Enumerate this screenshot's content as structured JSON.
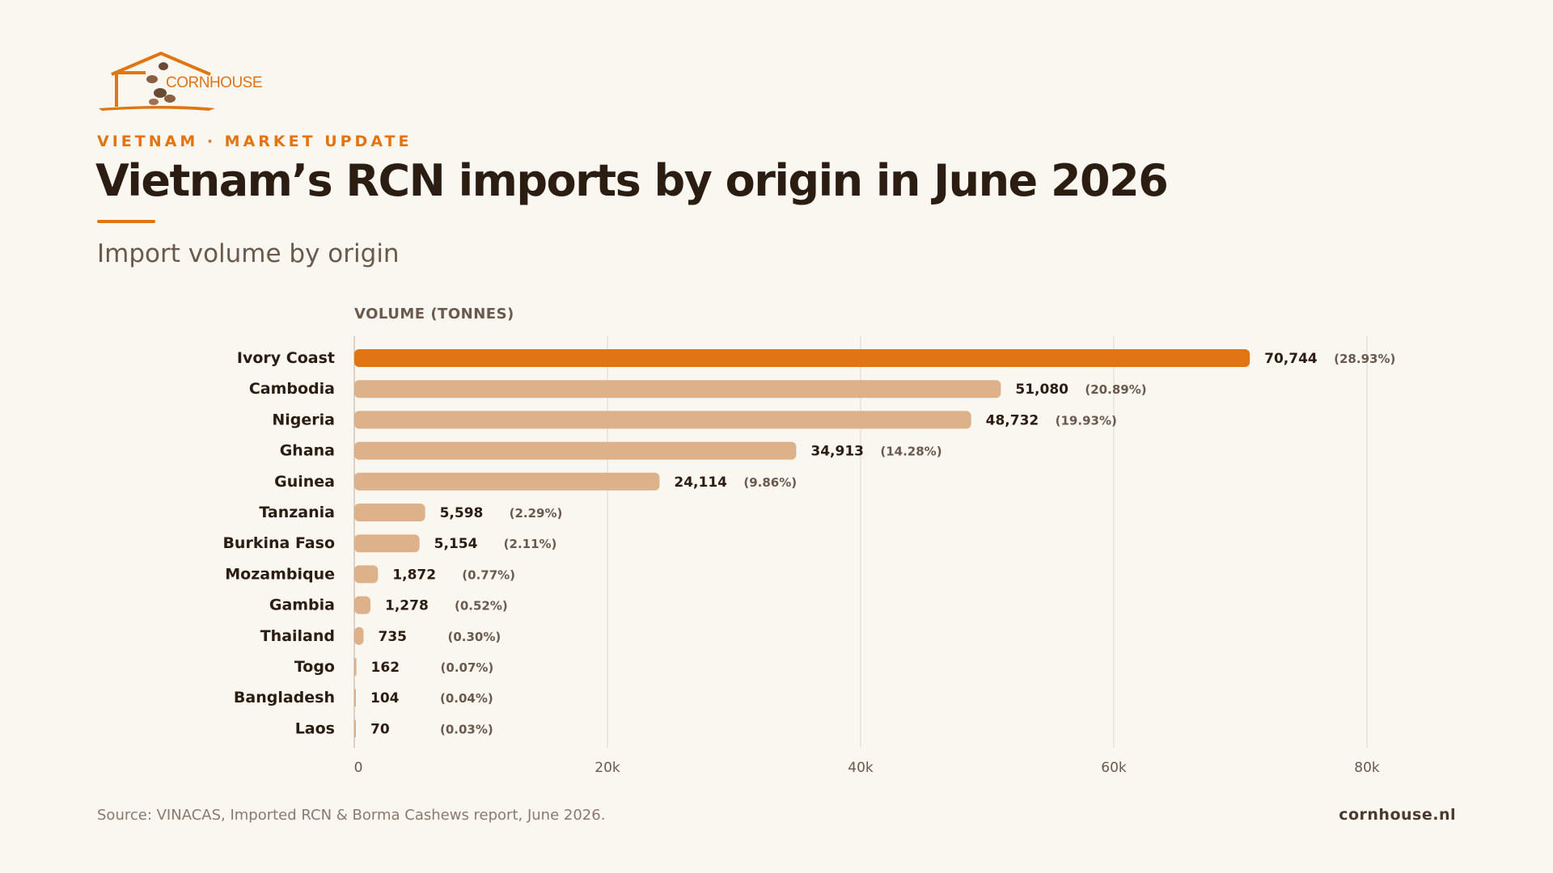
{
  "brand": {
    "logo_text": "CORNHOUSE",
    "accent": "#e07512",
    "bar_muted": "#ddb18a"
  },
  "header": {
    "eyebrow": "VIETNAM · MARKET UPDATE",
    "title": "Vietnam’s RCN imports by origin in June 2026",
    "subtitle": "Import volume by origin"
  },
  "chart_data": {
    "type": "bar",
    "orientation": "horizontal",
    "ylabel": "VOLUME (TONNES)",
    "xlim": [
      0,
      80000
    ],
    "x_ticks": [
      "0",
      "20k",
      "40k",
      "60k",
      "80k"
    ],
    "x_tick_values": [
      0,
      20000,
      40000,
      60000,
      80000
    ],
    "grid": true,
    "categories": [
      "Ivory Coast",
      "Cambodia",
      "Nigeria",
      "Ghana",
      "Guinea",
      "Tanzania",
      "Burkina Faso",
      "Mozambique",
      "Gambia",
      "Thailand",
      "Togo",
      "Bangladesh",
      "Laos"
    ],
    "values": [
      70744,
      51080,
      48732,
      34913,
      24114,
      5598,
      5154,
      1872,
      1278,
      735,
      162,
      104,
      70
    ],
    "value_labels": [
      "70,744",
      "51,080",
      "48,732",
      "34,913",
      "24,114",
      "5,598",
      "5,154",
      "1,872",
      "1,278",
      "735",
      "162",
      "104",
      "70"
    ],
    "share_labels": [
      "(28.93%)",
      "(20.89%)",
      "(19.93%)",
      "(14.28%)",
      "(9.86%)",
      "(2.29%)",
      "(2.11%)",
      "(0.77%)",
      "(0.52%)",
      "(0.30%)",
      "(0.07%)",
      "(0.04%)",
      "(0.03%)"
    ],
    "highlight_index": 0
  },
  "footer": {
    "source": "Source: VINACAS, Imported RCN & Borma Cashews report, June 2026.",
    "site": "cornhouse.nl"
  }
}
